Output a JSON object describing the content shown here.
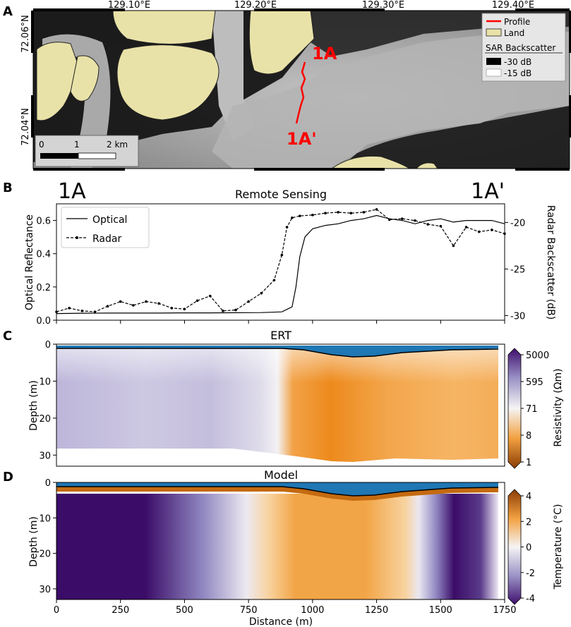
{
  "panels": {
    "A": "A",
    "B": "B",
    "C": "C",
    "D": "D"
  },
  "map": {
    "lon_ticks": [
      "129.10°E",
      "129.20°E",
      "129.30°E",
      "129.40°E"
    ],
    "lat_ticks": [
      "72.06°N",
      "72.04°N"
    ],
    "profile_start": "1A",
    "profile_end": "1A'",
    "scale_labels": [
      "0",
      "1",
      "2 km"
    ],
    "legend": {
      "profile": "Profile",
      "land": "Land",
      "sar_title": "SAR Backscatter",
      "sar_low": "-30 dB",
      "sar_high": "-15 dB"
    },
    "colors": {
      "land": "#e9e2a8",
      "profile": "#ff0000",
      "water_dark": "#0f0f0f",
      "ice_light": "#b8b8b8"
    }
  },
  "chart_data": [
    {
      "panel": "B",
      "type": "line",
      "title": "Remote Sensing",
      "profile_start": "1A",
      "profile_end": "1A'",
      "xlim": [
        0,
        1750
      ],
      "ylabel": "Optical Reflectance",
      "ylim": [
        0,
        0.7
      ],
      "yticks": [
        "0.0",
        "0.2",
        "0.4",
        "0.6"
      ],
      "y2label": "Radar Backscatter (dB)",
      "y2lim": [
        -30.5,
        -18
      ],
      "y2ticks": [
        "-30",
        "-25",
        "-20"
      ],
      "legend": [
        "Optical",
        "Radar"
      ],
      "series": [
        {
          "name": "Optical",
          "axis": "left",
          "style": "solid",
          "x": [
            0,
            100,
            200,
            300,
            400,
            500,
            600,
            700,
            800,
            880,
            920,
            935,
            950,
            970,
            1000,
            1050,
            1100,
            1150,
            1200,
            1250,
            1300,
            1350,
            1400,
            1450,
            1500,
            1550,
            1600,
            1650,
            1700,
            1750
          ],
          "y": [
            0.04,
            0.042,
            0.043,
            0.043,
            0.043,
            0.044,
            0.044,
            0.045,
            0.046,
            0.05,
            0.08,
            0.2,
            0.38,
            0.5,
            0.55,
            0.57,
            0.58,
            0.6,
            0.61,
            0.63,
            0.61,
            0.6,
            0.58,
            0.6,
            0.61,
            0.59,
            0.6,
            0.6,
            0.6,
            0.58
          ]
        },
        {
          "name": "Radar",
          "axis": "right",
          "style": "dashed-markers",
          "x": [
            0,
            50,
            100,
            150,
            200,
            250,
            300,
            350,
            400,
            450,
            500,
            550,
            600,
            650,
            700,
            750,
            800,
            850,
            880,
            900,
            920,
            950,
            1000,
            1050,
            1100,
            1150,
            1200,
            1250,
            1300,
            1350,
            1400,
            1450,
            1500,
            1550,
            1600,
            1650,
            1700,
            1750
          ],
          "y": [
            -29.6,
            -29.2,
            -29.5,
            -29.6,
            -29.0,
            -28.5,
            -28.9,
            -28.5,
            -28.7,
            -29.2,
            -29.3,
            -28.4,
            -27.9,
            -29.5,
            -29.4,
            -28.5,
            -27.6,
            -26.2,
            -23.5,
            -20.5,
            -19.5,
            -19.3,
            -19.2,
            -19.0,
            -18.9,
            -19.0,
            -18.9,
            -18.6,
            -19.7,
            -19.6,
            -19.8,
            -20.2,
            -20.4,
            -22.5,
            -20.5,
            -21.0,
            -20.8,
            -21.2
          ]
        }
      ]
    },
    {
      "panel": "C",
      "type": "heatmap",
      "title": "ERT",
      "ylabel": "Depth (m)",
      "ylim": [
        0,
        33
      ],
      "yticks": [
        "0",
        "10",
        "20",
        "30"
      ],
      "colorbar_label": "Resistivity (Ωm)",
      "colorbar_ticks": [
        "5000",
        "595",
        "71",
        "8",
        "1"
      ],
      "regions": [
        {
          "x_range": [
            0,
            930
          ],
          "resistivity": "high (~300-1000 Ωm)",
          "description": ""
        },
        {
          "x_range": [
            930,
            1730
          ],
          "resistivity": "low (~5-20 Ωm)",
          "description": ""
        }
      ]
    },
    {
      "panel": "D",
      "type": "heatmap",
      "title": "Model",
      "xlabel": "Distance (m)",
      "xticks": [
        "0",
        "250",
        "500",
        "750",
        "1000",
        "1250",
        "1500",
        "1750"
      ],
      "xlim": [
        0,
        1750
      ],
      "ylabel": "Depth (m)",
      "ylim": [
        0,
        33
      ],
      "yticks": [
        "0",
        "10",
        "20",
        "30"
      ],
      "colorbar_label": "Temperature (°C)",
      "colorbar_ticks": [
        "4",
        "2",
        "0",
        "-2",
        "-4"
      ],
      "regions": [
        {
          "x_range": [
            0,
            560
          ],
          "temperature": -4
        },
        {
          "x_range": [
            560,
            850
          ],
          "temperature": -1
        },
        {
          "x_range": [
            850,
            1390
          ],
          "temperature": 2
        },
        {
          "x_range": [
            1390,
            1500
          ],
          "temperature": -1
        },
        {
          "x_range": [
            1500,
            1730
          ],
          "temperature": -3.5
        }
      ]
    }
  ]
}
